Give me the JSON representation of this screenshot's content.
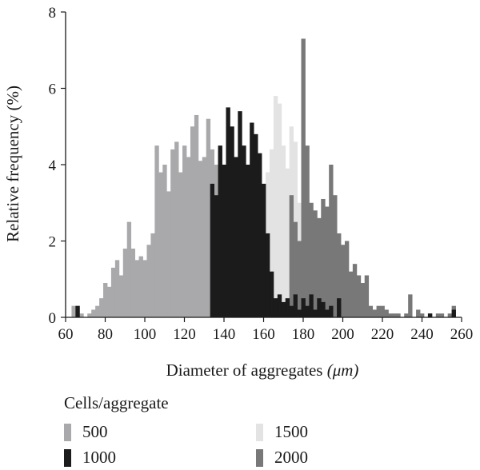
{
  "chart_data": {
    "type": "bar",
    "title": "",
    "xlabel": "Diameter of aggregates",
    "xlabel_unit": "(μm)",
    "ylabel": "Relative frequency (%)",
    "xlim": [
      60,
      260
    ],
    "ylim": [
      0,
      8
    ],
    "x_ticks": [
      60,
      80,
      100,
      120,
      140,
      160,
      180,
      200,
      220,
      240,
      260
    ],
    "y_ticks": [
      0,
      2,
      4,
      6,
      8
    ],
    "grid": false,
    "legend": {
      "title": "Cells/aggregate",
      "placement": "bottom"
    },
    "series": [
      {
        "name": "500",
        "color": "#a9a9ab",
        "x": [
          64,
          66,
          68,
          72,
          74,
          76,
          78,
          80,
          82,
          84,
          86,
          88,
          90,
          92,
          94,
          96,
          98,
          100,
          102,
          104,
          106,
          108,
          110,
          112,
          114,
          116,
          118,
          120,
          122,
          124,
          126,
          128,
          130,
          132,
          134,
          136,
          138,
          140,
          142,
          144,
          146,
          148,
          150,
          152,
          154,
          156,
          158,
          160,
          162,
          164,
          166
        ],
        "values": [
          0.3,
          0.3,
          0.1,
          0.1,
          0.2,
          0.3,
          0.5,
          0.9,
          0.8,
          1.3,
          1.5,
          1.1,
          1.8,
          2.5,
          1.8,
          1.5,
          1.6,
          1.5,
          1.9,
          2.2,
          4.5,
          3.8,
          4.0,
          3.3,
          4.4,
          4.6,
          3.8,
          4.5,
          4.2,
          5.0,
          5.3,
          4.1,
          4.2,
          5.2,
          4.4,
          4.0,
          4.4,
          3.5,
          3.0,
          2.5,
          2.2,
          2.0,
          1.5,
          1.4,
          1.2,
          1.0,
          0.8,
          0.6,
          0.5,
          0.3,
          0.2
        ]
      },
      {
        "name": "1000",
        "color": "#1b1b1b",
        "x": [
          66,
          134,
          136,
          138,
          140,
          142,
          144,
          146,
          148,
          150,
          152,
          154,
          156,
          158,
          160,
          162,
          164,
          166,
          168,
          170,
          172,
          174,
          176,
          178,
          180,
          182,
          184,
          186,
          188,
          190,
          192,
          194,
          198,
          244,
          256
        ],
        "values": [
          0.3,
          3.5,
          3.2,
          4.5,
          4.0,
          5.5,
          5.0,
          4.2,
          5.4,
          4.5,
          4.0,
          5.1,
          4.8,
          4.3,
          3.5,
          2.2,
          1.2,
          0.5,
          0.6,
          0.4,
          0.5,
          0.3,
          0.6,
          0.2,
          0.5,
          0.3,
          0.6,
          0.2,
          0.5,
          0.4,
          0.2,
          0.3,
          0.5,
          0.1,
          0.2
        ]
      },
      {
        "name": "1500",
        "color": "#e3e3e3",
        "x": [
          156,
          158,
          160,
          162,
          164,
          166,
          168,
          170,
          172,
          174,
          176,
          178,
          180,
          182,
          184,
          186,
          188,
          190,
          192,
          194,
          196,
          198,
          200,
          204,
          206,
          208,
          212
        ],
        "values": [
          3.2,
          2.2,
          3.4,
          3.8,
          4.4,
          5.8,
          5.6,
          4.5,
          3.9,
          5.0,
          4.6,
          3.0,
          3.5,
          2.5,
          1.8,
          1.0,
          1.3,
          0.8,
          0.6,
          0.7,
          0.4,
          0.5,
          0.3,
          0.2,
          0.3,
          0.2,
          0.2
        ]
      },
      {
        "name": "2000",
        "color": "#787878",
        "x": [
          174,
          176,
          178,
          180,
          182,
          184,
          186,
          188,
          190,
          192,
          194,
          196,
          198,
          200,
          202,
          204,
          206,
          208,
          210,
          212,
          214,
          216,
          218,
          220,
          222,
          224,
          226,
          228,
          232,
          234,
          238,
          240,
          244,
          248,
          250,
          254,
          256
        ],
        "values": [
          3.2,
          2.5,
          2.0,
          7.3,
          4.5,
          3.0,
          2.8,
          2.6,
          3.1,
          2.9,
          4.0,
          3.2,
          2.2,
          1.9,
          2.0,
          1.2,
          1.4,
          1.1,
          0.9,
          1.1,
          0.3,
          0.2,
          0.3,
          0.3,
          0.2,
          0.1,
          0.1,
          0.1,
          0.1,
          0.6,
          0.2,
          0.1,
          0.1,
          0.1,
          0.1,
          0.1,
          0.3
        ]
      }
    ]
  }
}
